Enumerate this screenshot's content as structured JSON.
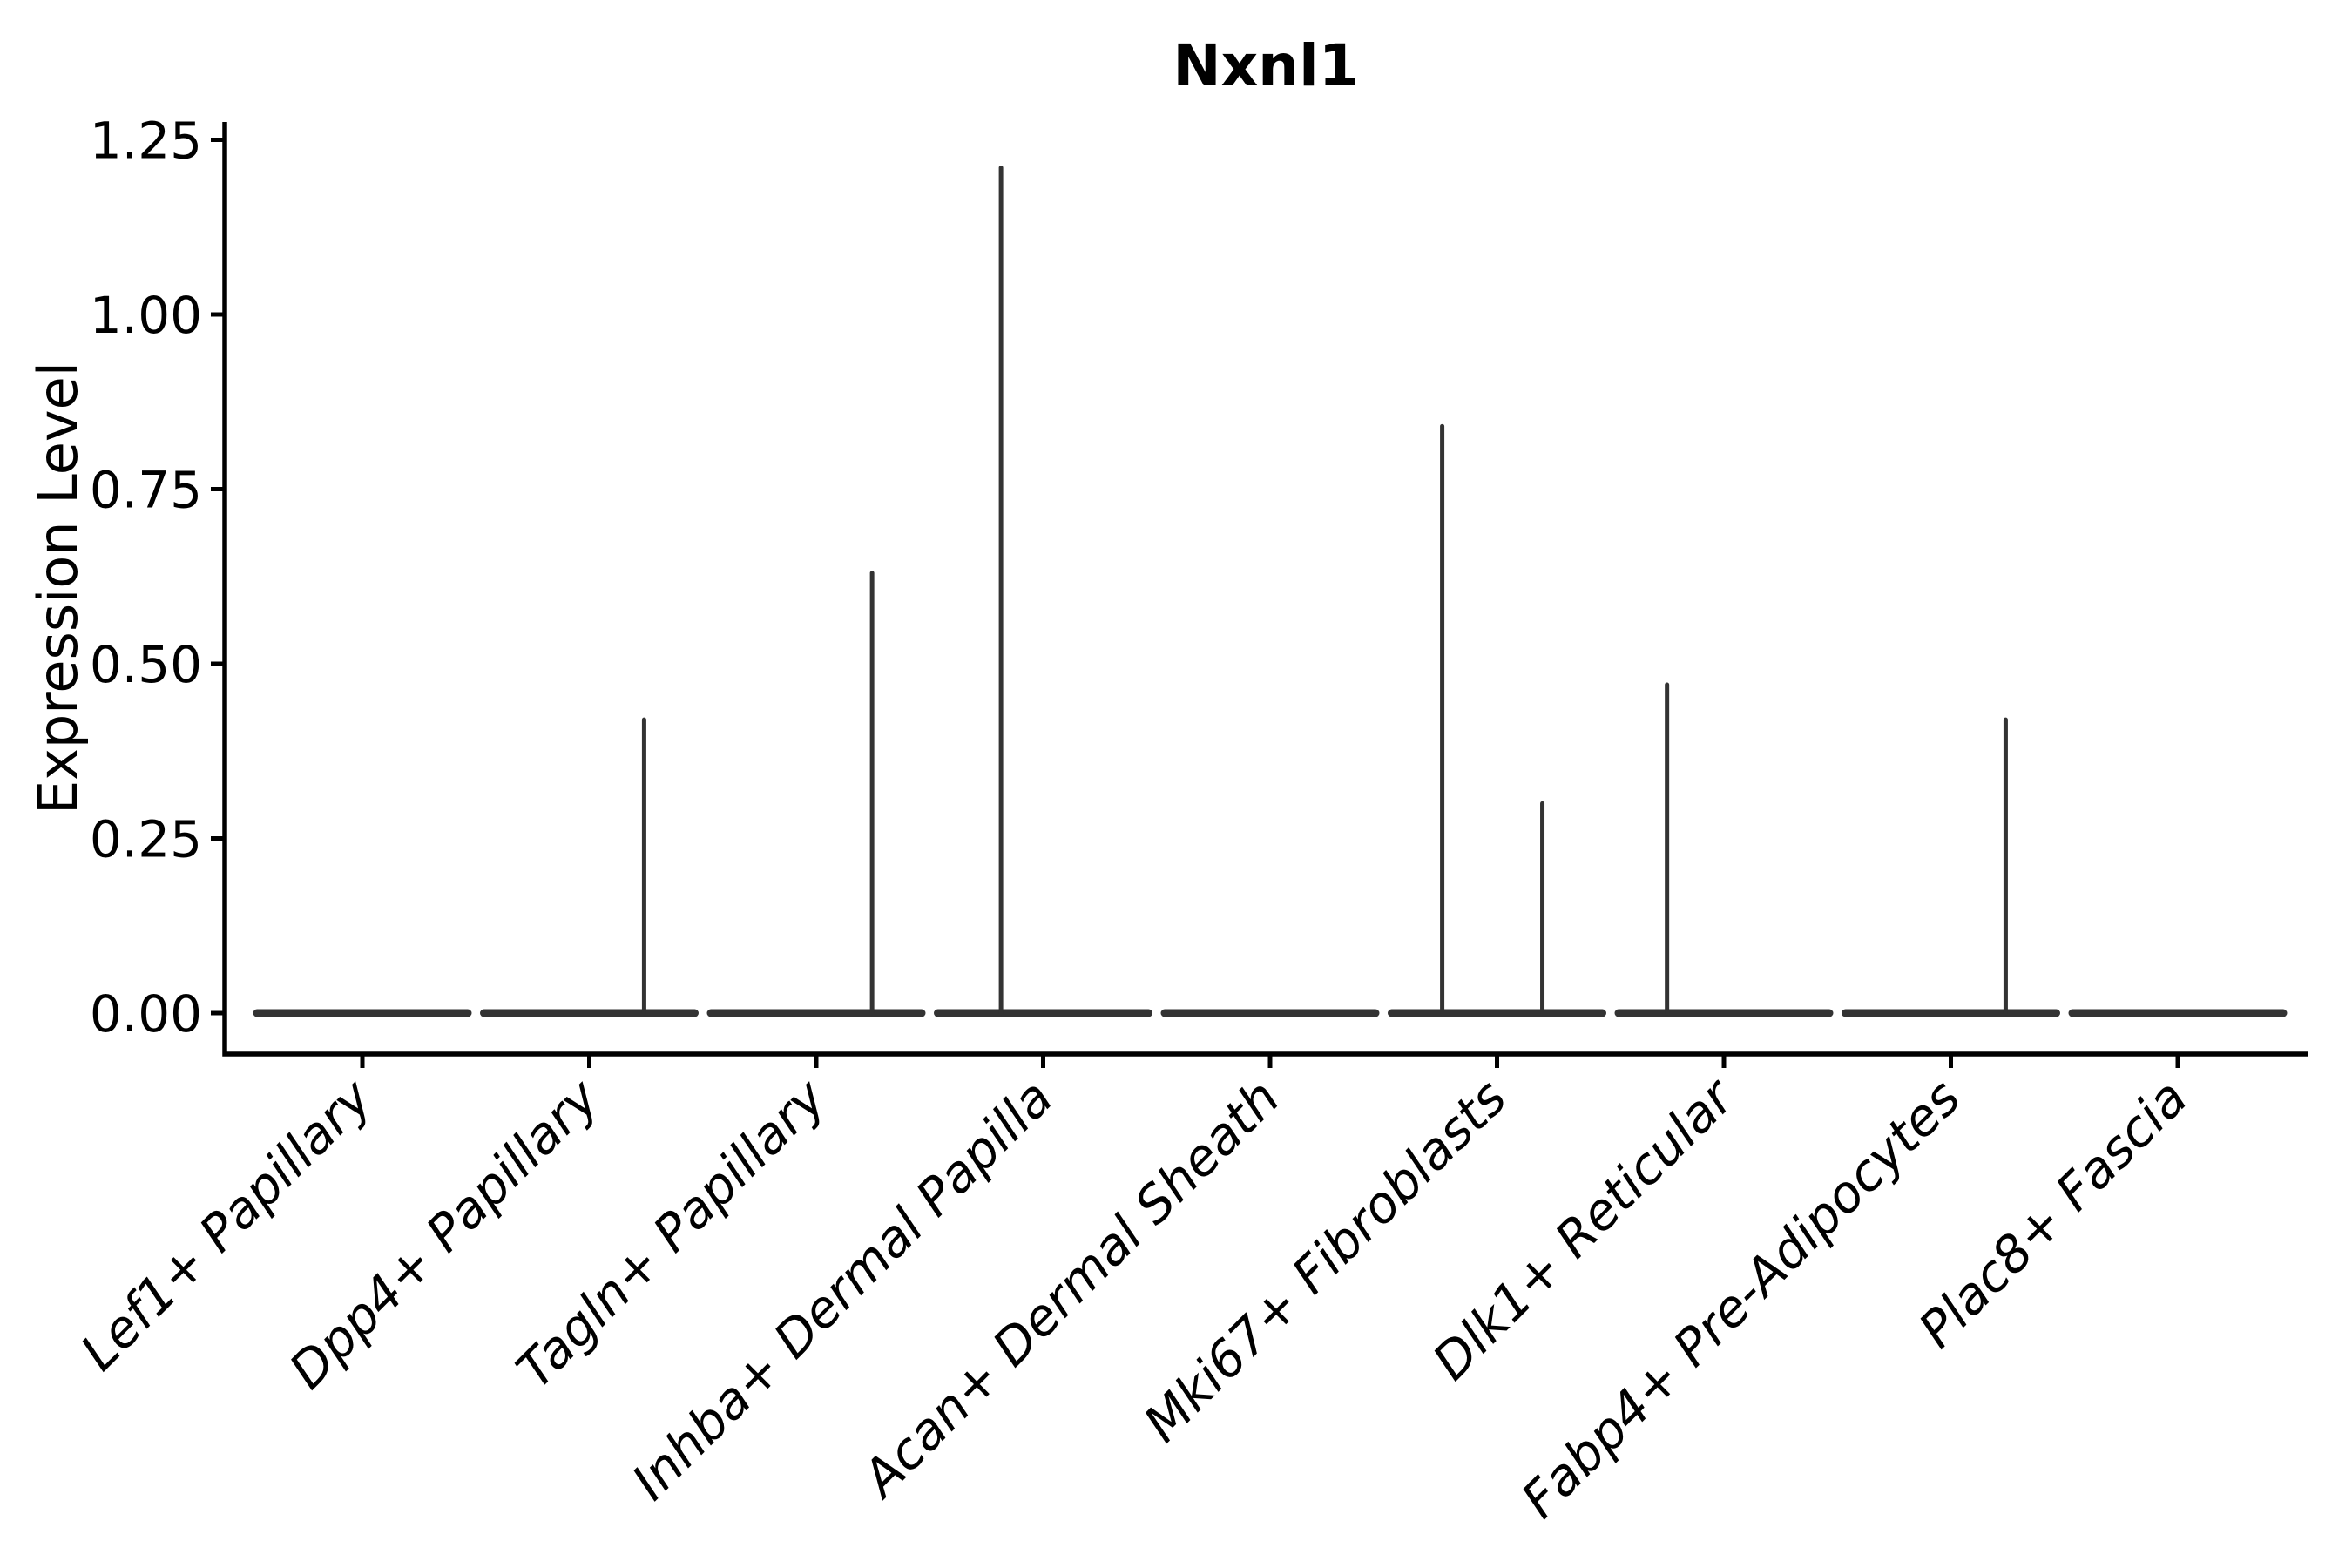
{
  "figure": {
    "background_color": "#ffffff",
    "axis_color": "#000000",
    "text_color": "#000000",
    "violin_color": "#333333"
  },
  "chart_data": {
    "type": "violin",
    "title": "Nxnl1",
    "xlabel": "",
    "ylabel": "Expression Level",
    "ylim": [
      -0.06,
      1.28
    ],
    "grid": false,
    "legend": "none",
    "x_tick_rotation_deg": 45,
    "x_tick_style": "italic",
    "yticks": [
      {
        "value": 0.0,
        "label": "0.00"
      },
      {
        "value": 0.25,
        "label": "0.25"
      },
      {
        "value": 0.5,
        "label": "0.50"
      },
      {
        "value": 0.75,
        "label": "0.75"
      },
      {
        "value": 1.0,
        "label": "1.00"
      },
      {
        "value": 1.25,
        "label": "1.25"
      }
    ],
    "categories": [
      "Lef1+ Papillary",
      "Dpp4+ Papillary",
      "Tagln+ Papillary",
      "Inhba+ Dermal Papilla",
      "Acan+ Dermal Sheath",
      "Mki67+ Fibroblasts",
      "Dlk1+ Reticular",
      "Fabp4+ Pre-Adipocytes",
      "Plac8+ Fascia"
    ],
    "violins": [
      {
        "label": "Lef1+ Papillary",
        "baseline_value": 0,
        "spikes": []
      },
      {
        "label": "Dpp4+ Papillary",
        "baseline_value": 0,
        "spikes": [
          {
            "value": 0.42,
            "offset": 0.52
          }
        ]
      },
      {
        "label": "Tagln+ Papillary",
        "baseline_value": 0,
        "spikes": [
          {
            "value": 0.63,
            "offset": 0.53
          }
        ]
      },
      {
        "label": "Inhba+ Dermal Papilla",
        "baseline_value": 0,
        "spikes": [
          {
            "value": 1.21,
            "offset": -0.4
          }
        ]
      },
      {
        "label": "Acan+ Dermal Sheath",
        "baseline_value": 0,
        "spikes": []
      },
      {
        "label": "Mki67+ Fibroblasts",
        "baseline_value": 0,
        "spikes": [
          {
            "value": 0.84,
            "offset": -0.52
          },
          {
            "value": 0.3,
            "offset": 0.43
          }
        ]
      },
      {
        "label": "Dlk1+ Reticular",
        "baseline_value": 0,
        "spikes": [
          {
            "value": 0.47,
            "offset": -0.54
          }
        ]
      },
      {
        "label": "Fabp4+ Pre-Adipocytes",
        "baseline_value": 0,
        "spikes": [
          {
            "value": 0.42,
            "offset": 0.52
          }
        ]
      },
      {
        "label": "Plac8+ Fascia",
        "baseline_value": 0,
        "spikes": []
      }
    ]
  }
}
